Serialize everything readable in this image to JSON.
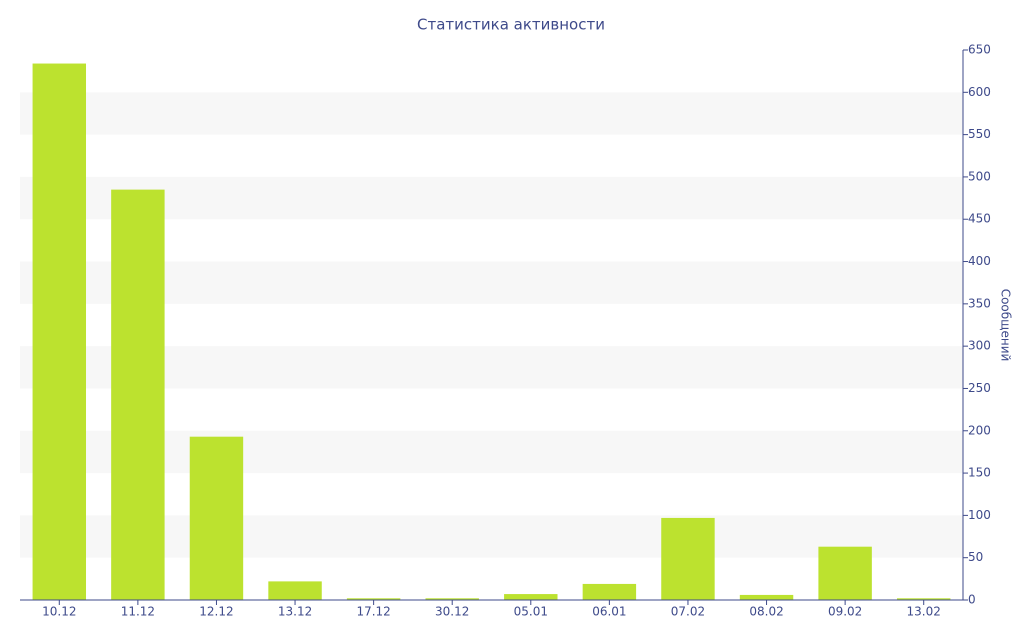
{
  "chart_data": {
    "type": "bar",
    "title": "Статистика активности",
    "y_label": "Сообщений",
    "categories": [
      "10.12",
      "11.12",
      "12.12",
      "13.12",
      "17.12",
      "30.12",
      "05.01",
      "06.01",
      "07.02",
      "08.02",
      "09.02",
      "13.02"
    ],
    "values": [
      634,
      485,
      193,
      22,
      2,
      2,
      7,
      19,
      97,
      6,
      63,
      2
    ],
    "color": "#bce22f",
    "ylim": [
      0,
      650
    ],
    "yticks": [
      0,
      50,
      100,
      150,
      200,
      250,
      300,
      350,
      400,
      450,
      500,
      550,
      600,
      650
    ],
    "y_axis_side": "right",
    "banded_grid": true
  }
}
